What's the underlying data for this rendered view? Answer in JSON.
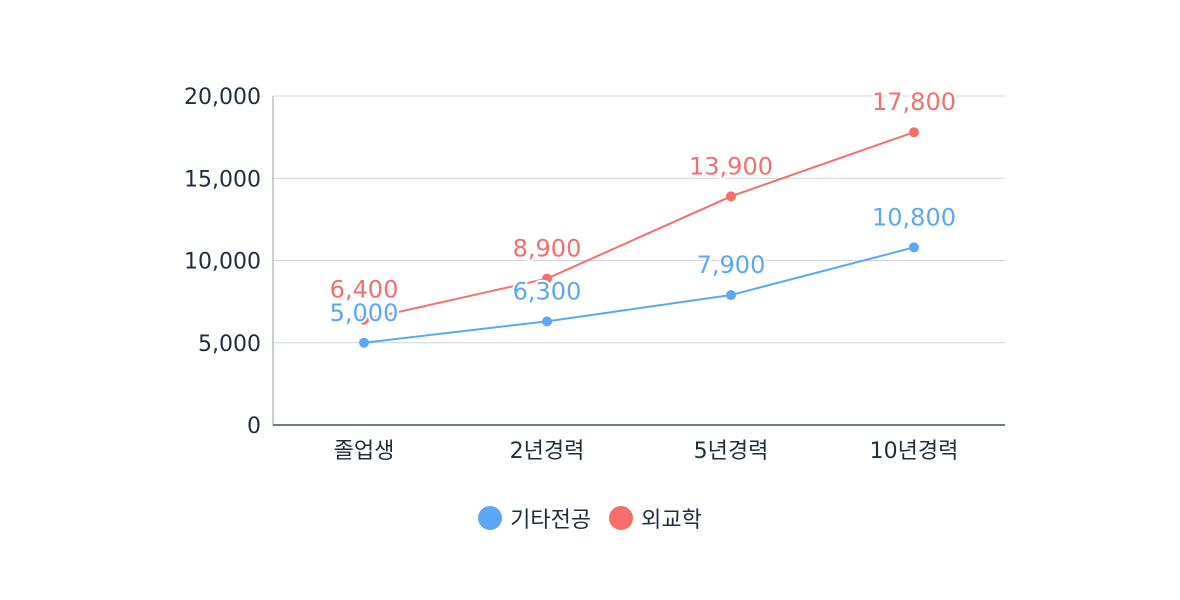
{
  "colors": {
    "series_blue": "#5aa7f3",
    "series_red": "#f46f6c",
    "grid": "#cfd3d8",
    "axis": "#1f2d3d",
    "text": "#1f2d3d"
  },
  "chart_data": {
    "type": "line",
    "title": "",
    "xlabel": "",
    "ylabel": "",
    "categories": [
      "졸업생",
      "2년경력",
      "5년경력",
      "10년경력"
    ],
    "ylim": [
      0,
      20000
    ],
    "yticks": [
      0,
      5000,
      10000,
      15000,
      20000
    ],
    "ytick_labels": [
      "0",
      "5,000",
      "10,000",
      "15,000",
      "20,000"
    ],
    "grid": true,
    "legend_position": "bottom",
    "series": [
      {
        "name": "기타전공",
        "color": "#5aa7f3",
        "values": [
          5000,
          6300,
          7900,
          10800
        ],
        "value_labels": [
          "5,000",
          "6,300",
          "7,900",
          "10,800"
        ]
      },
      {
        "name": "외교학",
        "color": "#f46f6c",
        "values": [
          6400,
          8900,
          13900,
          17800
        ],
        "value_labels": [
          "6,400",
          "8,900",
          "13,900",
          "17,800"
        ]
      }
    ]
  },
  "legend": {
    "items": [
      {
        "label": "기타전공",
        "color": "#5aa7f3"
      },
      {
        "label": "외교학",
        "color": "#f46f6c"
      }
    ]
  }
}
